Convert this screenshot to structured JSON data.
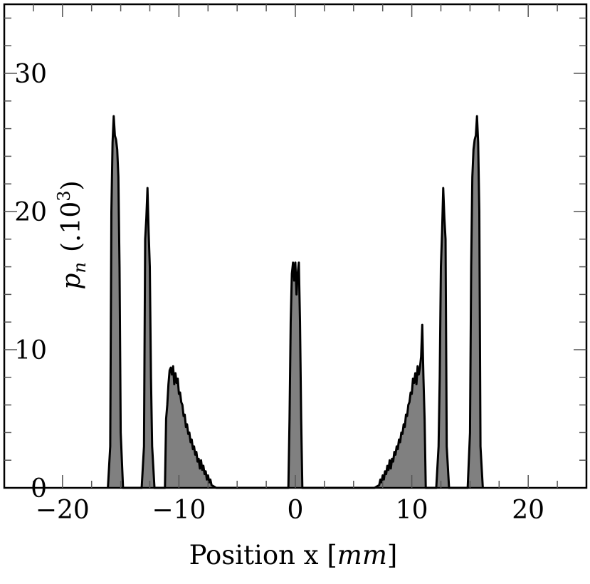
{
  "chart_data": {
    "type": "area",
    "title": "",
    "xlabel": "Position x [mm]",
    "xlabel_parts": {
      "plain": "Position x [",
      "italic": "mm",
      "close": "]"
    },
    "ylabel": "p_n (.10^3)",
    "ylabel_parts": {
      "var": "p",
      "sub": "n",
      "unit_open": "(.10",
      "unit_sup": "3",
      "unit_close": ")"
    },
    "xlim": [
      -25,
      25
    ],
    "ylim": [
      0,
      35
    ],
    "x_ticks": [
      -20,
      -10,
      0,
      10,
      20
    ],
    "y_ticks": [
      0,
      10,
      20,
      30
    ],
    "grid": false,
    "fill_color": "#808080",
    "line_color": "#000000",
    "series": [
      {
        "x": [
          -16.1,
          -15.9,
          -15.8,
          -15.7,
          -15.6,
          -15.5,
          -15.4,
          -15.3,
          -15.2,
          -15.1,
          -15.0,
          -14.8,
          -13.2,
          -13.0,
          -12.9,
          -12.8,
          -12.7,
          -12.6,
          -12.5,
          -12.4,
          -12.3,
          -12.1,
          -11.2,
          -11.1,
          -11.0,
          -10.9,
          -10.8,
          -10.7,
          -10.6,
          -10.5,
          -10.4,
          -10.3,
          -10.2,
          -10.1,
          -10.0,
          -9.9,
          -9.8,
          -9.7,
          -9.6,
          -9.5,
          -9.4,
          -9.3,
          -9.2,
          -9.1,
          -9.0,
          -8.9,
          -8.8,
          -8.7,
          -8.6,
          -8.5,
          -8.4,
          -8.3,
          -8.2,
          -8.1,
          -8.0,
          -7.9,
          -7.8,
          -7.7,
          -7.6,
          -7.5,
          -7.4,
          -7.3,
          -7.2,
          -7.0,
          -6.8,
          -6.6,
          -0.6,
          -0.5,
          -0.4,
          -0.3,
          -0.2,
          -0.1,
          0.0,
          0.1,
          0.2,
          0.3,
          0.4,
          0.5,
          0.6,
          6.6,
          6.8,
          7.0,
          7.2,
          7.3,
          7.4,
          7.5,
          7.6,
          7.7,
          7.8,
          7.9,
          8.0,
          8.1,
          8.2,
          8.3,
          8.4,
          8.5,
          8.6,
          8.7,
          8.8,
          8.9,
          9.0,
          9.1,
          9.2,
          9.3,
          9.4,
          9.5,
          9.6,
          9.7,
          9.8,
          9.9,
          10.0,
          10.1,
          10.2,
          10.3,
          10.4,
          10.5,
          10.6,
          10.7,
          10.8,
          10.9,
          11.0,
          11.1,
          11.2,
          12.1,
          12.3,
          12.4,
          12.5,
          12.6,
          12.7,
          12.8,
          12.9,
          13.0,
          13.2,
          14.8,
          15.0,
          15.1,
          15.2,
          15.3,
          15.4,
          15.5,
          15.6,
          15.7,
          15.8,
          15.9,
          16.1
        ],
        "y": [
          0,
          3,
          20,
          25,
          26.9,
          25.5,
          25.2,
          24.5,
          22.5,
          16,
          4,
          0,
          0,
          3,
          18,
          19.5,
          21.7,
          18.5,
          16,
          8,
          3,
          0,
          0,
          5,
          6,
          7.5,
          8.5,
          8.7,
          8.2,
          8.8,
          7.5,
          8.3,
          7.6,
          7.9,
          6.8,
          6.9,
          6.2,
          6.0,
          5.2,
          5.3,
          4.4,
          4.6,
          3.9,
          4.0,
          3.3,
          3.5,
          2.8,
          3.0,
          2.4,
          2.6,
          1.9,
          2.1,
          1.4,
          2.0,
          1.3,
          1.6,
          1.0,
          1.2,
          0.6,
          0.9,
          0.4,
          0.6,
          0.2,
          0.1,
          0,
          0,
          0,
          5,
          12,
          15.5,
          16.3,
          15,
          16.3,
          14,
          15.5,
          16.3,
          12,
          5,
          0,
          0,
          0,
          0.1,
          0.2,
          0.6,
          0.4,
          0.9,
          0.6,
          1.2,
          1.0,
          1.6,
          1.3,
          2.0,
          1.4,
          2.1,
          1.9,
          2.6,
          2.4,
          3.0,
          2.8,
          3.5,
          3.3,
          4.0,
          3.9,
          4.6,
          4.4,
          5.3,
          5.2,
          6.0,
          6.2,
          6.9,
          6.8,
          7.9,
          7.6,
          8.3,
          7.5,
          8.8,
          8.2,
          8.7,
          9.5,
          11.8,
          8,
          5,
          0,
          0,
          3,
          8,
          16,
          18.5,
          21.7,
          19.5,
          18,
          3,
          0,
          0,
          4,
          16,
          22.5,
          24.5,
          25.2,
          25.5,
          26.9,
          25,
          20,
          3,
          0
        ]
      }
    ]
  }
}
